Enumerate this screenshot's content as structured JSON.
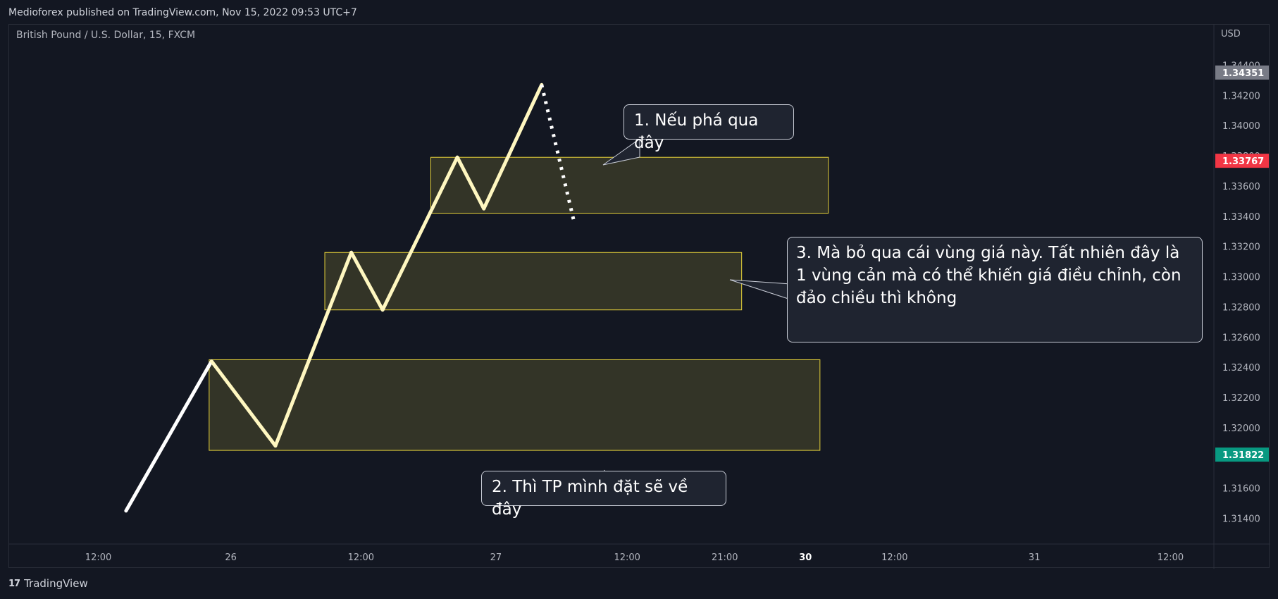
{
  "header": {
    "publisher_line": "Medioforex published on TradingView.com, Nov 15, 2022 09:53 UTC+7"
  },
  "symbol": {
    "title": "British Pound / U.S. Dollar, 15, FXCM"
  },
  "footer": {
    "brand": "TradingView",
    "logo_text": "17"
  },
  "colors": {
    "background": "#131722",
    "zone_fill": "#3a3a28",
    "zone_border": "#e6d23a",
    "path_line": "#ffffff",
    "zigzag": "#fff7c0",
    "label_red": "#f23645",
    "label_green": "#089981",
    "label_gray": "#787b86"
  },
  "annotations": {
    "callout_1": "1. Nếu phá qua đây",
    "callout_2": "2. Thì TP mình đặt sẽ về đây",
    "callout_3": "3. Mà bỏ qua cái vùng giá này. Tất nhiên đây là 1 vùng cản mà có thể khiến giá điều chỉnh, còn đảo chiều thì không"
  },
  "chart_data": {
    "type": "line",
    "y_axis": {
      "currency": "USD",
      "ylim": [
        1.313,
        1.345
      ],
      "ticks": [
        "1.34400",
        "1.34200",
        "1.34000",
        "1.33800",
        "1.33600",
        "1.33400",
        "1.33200",
        "1.33000",
        "1.32800",
        "1.32600",
        "1.32400",
        "1.32200",
        "1.32000",
        "1.31800",
        "1.31600",
        "1.31400"
      ],
      "tick_values": [
        1.344,
        1.342,
        1.34,
        1.338,
        1.336,
        1.334,
        1.332,
        1.33,
        1.328,
        1.326,
        1.324,
        1.322,
        1.32,
        1.318,
        1.316,
        1.314
      ],
      "price_labels": [
        {
          "text": "1.34351",
          "value": 1.34351,
          "color": "#787b86"
        },
        {
          "text": "1.33767",
          "value": 1.33767,
          "color": "#f23645"
        },
        {
          "text": "1.31822",
          "value": 1.31822,
          "color": "#089981"
        }
      ]
    },
    "x_axis": {
      "xlim": [
        0,
        100
      ],
      "ticks": [
        {
          "label": "12:00",
          "x": 7.4
        },
        {
          "label": "26",
          "x": 18.4
        },
        {
          "label": "12:00",
          "x": 29.2
        },
        {
          "label": "27",
          "x": 40.4
        },
        {
          "label": "12:00",
          "x": 51.3
        },
        {
          "label": "21:00",
          "x": 59.4
        },
        {
          "label": "30",
          "x": 66.1,
          "bold": true
        },
        {
          "label": "12:00",
          "x": 73.5
        },
        {
          "label": "31",
          "x": 85.1
        },
        {
          "label": "12:00",
          "x": 96.4
        }
      ]
    },
    "zones": [
      {
        "x0": 35.0,
        "x1": 68.0,
        "y_top": 1.3379,
        "y_bottom": 1.3342
      },
      {
        "x0": 26.2,
        "x1": 60.8,
        "y_top": 1.3316,
        "y_bottom": 1.3278
      },
      {
        "x0": 16.6,
        "x1": 67.3,
        "y_top": 1.3245,
        "y_bottom": 1.3185
      }
    ],
    "series": [
      {
        "style": "solid",
        "points": [
          [
            9.7,
            1.3145
          ],
          [
            16.8,
            1.3244
          ],
          [
            22.1,
            1.3188
          ],
          [
            28.4,
            1.3316
          ],
          [
            31.0,
            1.3278
          ],
          [
            37.2,
            1.3379
          ],
          [
            39.4,
            1.3345
          ],
          [
            44.2,
            1.3427
          ]
        ]
      },
      {
        "style": "dotted",
        "points": [
          [
            44.2,
            1.3427
          ],
          [
            46.9,
            1.3336
          ]
        ]
      }
    ]
  }
}
